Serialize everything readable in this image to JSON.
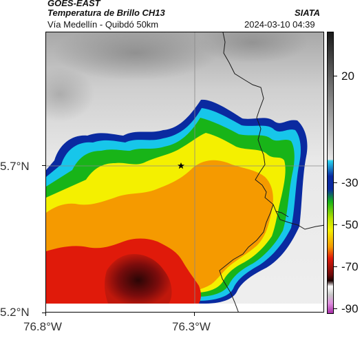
{
  "header": {
    "satellite": "GOES-EAST",
    "product": "Temperatura de Brillo CH13",
    "region": "Vía Medellín - Quibdó 50km",
    "institution": "SIATA",
    "datetime": "2024-03-10 04:39"
  },
  "map": {
    "lat_ticks": [
      "5.7°N",
      "5.2°N"
    ],
    "lon_ticks": [
      "76.8°W",
      "76.3°W"
    ],
    "marker": "star-icon"
  },
  "colorbar": {
    "labels": [
      "20",
      "-30",
      "-50",
      "-70",
      "-90"
    ],
    "colors": {
      "warm_gray_top": "#1a1a1a",
      "warm_gray_bottom": "#e6e6e6",
      "cyan": "#17c6ea",
      "blue": "#0a2aa0",
      "green": "#18b418",
      "yellow": "#f4f000",
      "orange": "#f59a00",
      "red": "#e01a0a",
      "dark_red": "#6a0a0a",
      "magenta": "#c040c0"
    }
  }
}
